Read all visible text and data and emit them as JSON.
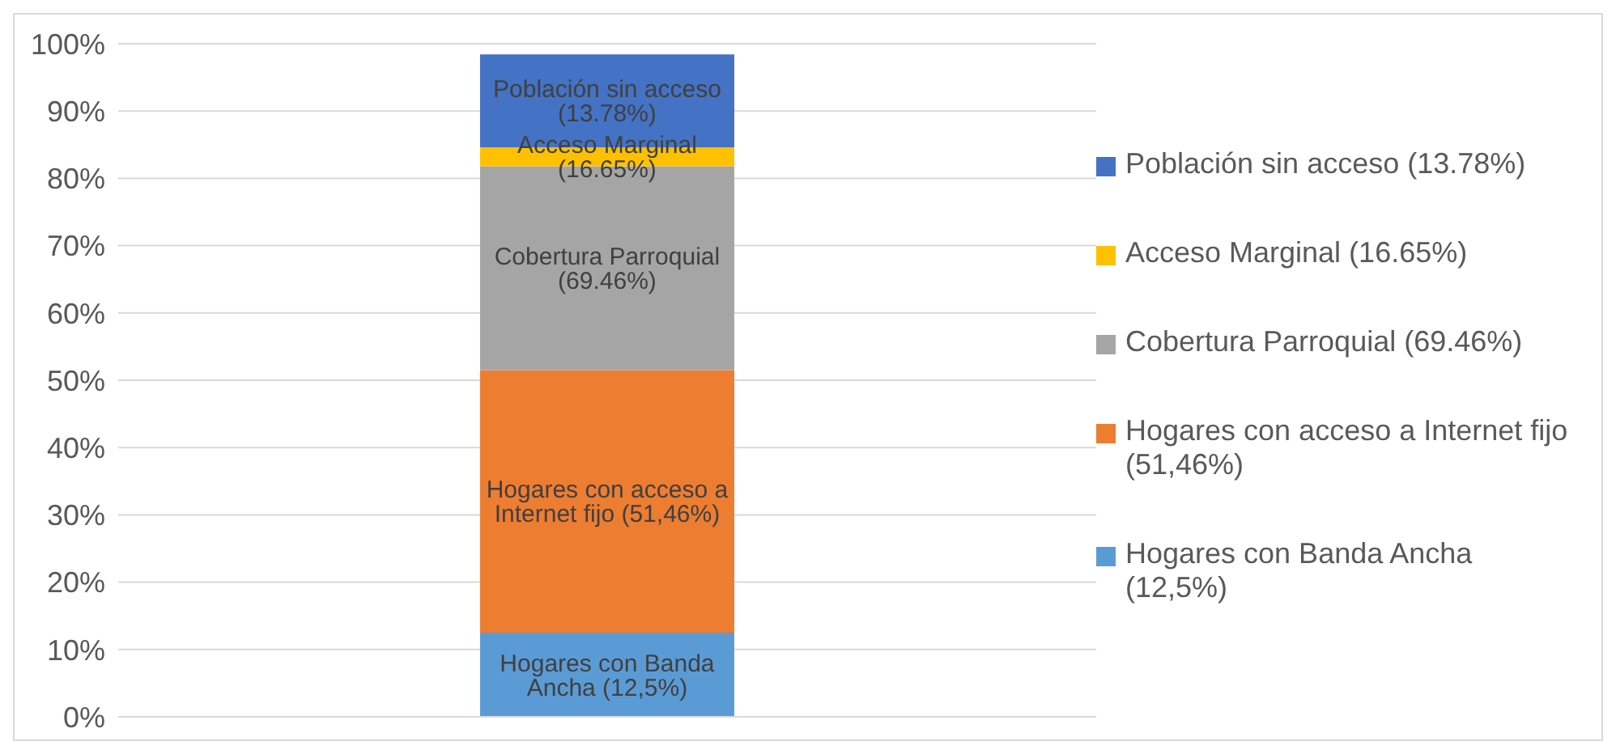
{
  "chart_data": {
    "type": "bar",
    "stacked": true,
    "categories": [
      null
    ],
    "series": [
      {
        "name": "Hogares con Banda Ancha (12,5%)",
        "color": "#5b9bd5",
        "values": [
          12.5
        ]
      },
      {
        "name": "Hogares con acceso a Internet fijo (51,46%)",
        "color": "#ed7d31",
        "values": [
          39
        ]
      },
      {
        "name": "Cobertura Parroquial (69.46%)",
        "color": "#a5a5a5",
        "values": [
          30.3
        ]
      },
      {
        "name": "Acceso Marginal (16.65%)",
        "color": "#ffc000",
        "values": [
          2.8
        ]
      },
      {
        "name": "Población sin acceso (13.78%)",
        "color": "#4472c4",
        "values": [
          13.8
        ]
      }
    ],
    "ylim": [
      0,
      100
    ],
    "yticks": [
      {
        "value": 0,
        "label": "0%"
      },
      {
        "value": 10,
        "label": "10%"
      },
      {
        "value": 20,
        "label": "20%"
      },
      {
        "value": 30,
        "label": "30%"
      },
      {
        "value": 40,
        "label": "40%"
      },
      {
        "value": 50,
        "label": "50%"
      },
      {
        "value": 60,
        "label": "60%"
      },
      {
        "value": 70,
        "label": "70%"
      },
      {
        "value": 80,
        "label": "80%"
      },
      {
        "value": 90,
        "label": "90%"
      },
      {
        "value": 100,
        "label": "100%"
      }
    ],
    "grid": "y",
    "legend": "right",
    "tick_labels": "y"
  }
}
